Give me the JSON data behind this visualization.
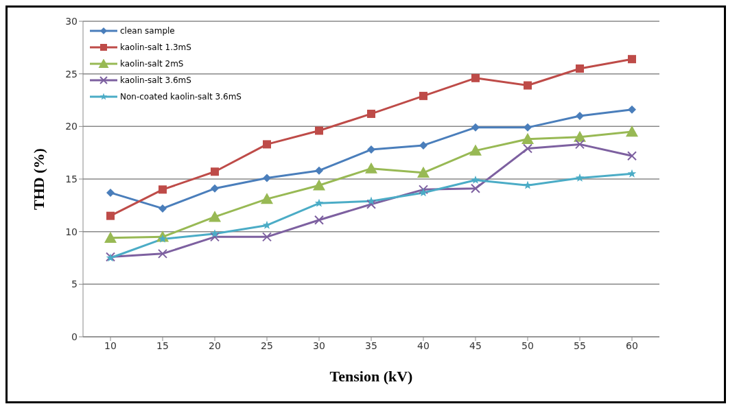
{
  "chart_data": {
    "type": "line",
    "xlabel": "Tension (kV)",
    "ylabel": "THD (%)",
    "categories": [
      "10",
      "15",
      "20",
      "25",
      "30",
      "35",
      "40",
      "45",
      "50",
      "55",
      "60"
    ],
    "ylim": [
      0,
      30
    ],
    "yticks": [
      0,
      5,
      10,
      15,
      20,
      25,
      30
    ],
    "grid": "y",
    "legend": "top left",
    "series": [
      {
        "name": "clean sample",
        "color": "#4a7ebb",
        "marker": "diamond",
        "values": [
          13.7,
          12.2,
          14.1,
          15.1,
          15.8,
          17.8,
          18.2,
          19.9,
          19.9,
          21.0,
          21.6
        ]
      },
      {
        "name": "kaolin-salt 1.3mS",
        "color": "#be4b48",
        "marker": "square",
        "values": [
          11.5,
          14.0,
          15.7,
          18.3,
          19.6,
          21.2,
          22.9,
          24.6,
          23.9,
          25.5,
          26.4
        ]
      },
      {
        "name": "kaolin-salt 2mS",
        "color": "#98b954",
        "marker": "triangle",
        "values": [
          9.4,
          9.5,
          11.4,
          13.1,
          14.4,
          16.0,
          15.6,
          17.7,
          18.8,
          19.0,
          19.5
        ]
      },
      {
        "name": "kaolin-salt 3.6mS",
        "color": "#7d60a0",
        "marker": "cross",
        "values": [
          7.6,
          7.9,
          9.5,
          9.5,
          11.1,
          12.6,
          14.0,
          14.1,
          17.9,
          18.3,
          17.2
        ]
      },
      {
        "name": "Non-coated kaolin-salt 3.6mS",
        "color": "#4bacc6",
        "marker": "star",
        "values": [
          7.5,
          9.3,
          9.8,
          10.6,
          12.7,
          12.9,
          13.7,
          14.9,
          14.4,
          15.1,
          15.5
        ]
      }
    ]
  }
}
